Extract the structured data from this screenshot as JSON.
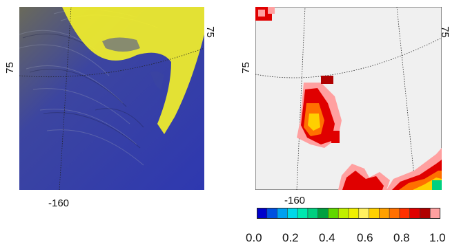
{
  "left_map": {
    "lat_label_left": "75",
    "lat_label_right": "75",
    "lon_label": "-160"
  },
  "right_map": {
    "lat_label_left": "75",
    "lat_label_right": "75",
    "lon_label": "-160"
  },
  "colorbar": {
    "tick_labels": [
      "0.0",
      "0.2",
      "0.4",
      "0.6",
      "0.8",
      "1.0"
    ],
    "colors": [
      "#0000cc",
      "#0050e0",
      "#00a0f0",
      "#00d8e8",
      "#00e8b0",
      "#00d080",
      "#00a040",
      "#60d800",
      "#c0f000",
      "#f0f000",
      "#fff060",
      "#ffd000",
      "#ffa000",
      "#ff7000",
      "#ff3000",
      "#e00000",
      "#b00000",
      "#ffa0a0"
    ]
  }
}
